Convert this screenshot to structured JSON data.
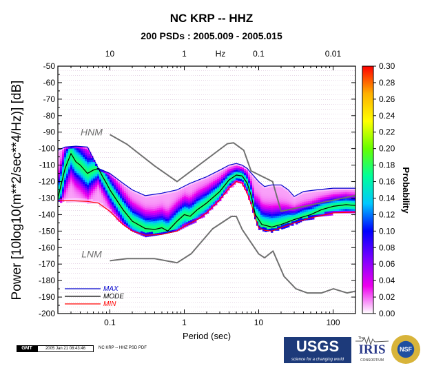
{
  "chart_data": {
    "type": "heatmap",
    "title": "NC KRP -- HHZ",
    "subtitle": "200 PSDs : 2005.009 - 2005.015",
    "xlabel": "Period (sec)",
    "ylabel": "Power [10log10(m**2/sec**4/Hz)] [dB]",
    "top_axis_label": "Hz",
    "x_scale": "log",
    "xlim": [
      0.02,
      200
    ],
    "ylim": [
      -200,
      -50
    ],
    "x_ticks": [
      {
        "value": 0.1,
        "label": "0.1"
      },
      {
        "value": 1,
        "label": "1"
      },
      {
        "value": 10,
        "label": "10"
      },
      {
        "value": 100,
        "label": "100"
      }
    ],
    "top_ticks": [
      {
        "value": 10,
        "label": "10"
      },
      {
        "value": 1,
        "label": "1"
      },
      {
        "value": 0.1,
        "label": "0.1"
      },
      {
        "value": 0.01,
        "label": "0.01"
      }
    ],
    "y_ticks": [
      {
        "value": -50,
        "label": "-50"
      },
      {
        "value": -60,
        "label": "-60"
      },
      {
        "value": -70,
        "label": "-70"
      },
      {
        "value": -80,
        "label": "-80"
      },
      {
        "value": -90,
        "label": "-90"
      },
      {
        "value": -100,
        "label": "-100"
      },
      {
        "value": -110,
        "label": "-110"
      },
      {
        "value": -120,
        "label": "-120"
      },
      {
        "value": -130,
        "label": "-130"
      },
      {
        "value": -140,
        "label": "-140"
      },
      {
        "value": -150,
        "label": "-150"
      },
      {
        "value": -160,
        "label": "-160"
      },
      {
        "value": -170,
        "label": "-170"
      },
      {
        "value": -180,
        "label": "-180"
      },
      {
        "value": -190,
        "label": "-190"
      },
      {
        "value": -200,
        "label": "-200"
      }
    ],
    "colorbar": {
      "label": "Probability",
      "range": [
        0,
        0.3
      ],
      "ticks": [
        {
          "value": 0.3,
          "label": "0.30"
        },
        {
          "value": 0.28,
          "label": "0.28"
        },
        {
          "value": 0.26,
          "label": "0.26"
        },
        {
          "value": 0.24,
          "label": "0.24"
        },
        {
          "value": 0.22,
          "label": "0.22"
        },
        {
          "value": 0.2,
          "label": "0.20"
        },
        {
          "value": 0.18,
          "label": "0.18"
        },
        {
          "value": 0.16,
          "label": "0.16"
        },
        {
          "value": 0.14,
          "label": "0.14"
        },
        {
          "value": 0.12,
          "label": "0.12"
        },
        {
          "value": 0.1,
          "label": "0.10"
        },
        {
          "value": 0.08,
          "label": "0.08"
        },
        {
          "value": 0.06,
          "label": "0.06"
        },
        {
          "value": 0.04,
          "label": "0.04"
        },
        {
          "value": 0.02,
          "label": "0.02"
        },
        {
          "value": 0.0,
          "label": "0.00"
        }
      ],
      "colors": [
        "#ffffff",
        "#ee00ee",
        "#7a00ff",
        "#0000ff",
        "#00c8ff",
        "#00ff9a",
        "#66ff00",
        "#ffff00",
        "#ffb000",
        "#ff0000"
      ]
    },
    "model_labels": [
      {
        "text": "HNM",
        "x": 0.05,
        "y": -92
      },
      {
        "text": "LNM",
        "x": 0.05,
        "y": -166
      }
    ],
    "legend": {
      "position": "bottom-left",
      "entries": [
        {
          "label": "MAX",
          "color": "#0000cc"
        },
        {
          "label": "MODE",
          "color": "#000000"
        },
        {
          "label": "MIN",
          "color": "#ff0000"
        }
      ]
    },
    "series": [
      {
        "name": "HNM",
        "color": "#707070",
        "points": [
          [
            0.1,
            -91.5
          ],
          [
            0.17,
            -97.4
          ],
          [
            0.4,
            -110.5
          ],
          [
            0.8,
            -120
          ],
          [
            3.8,
            -97
          ],
          [
            4.6,
            -96.5
          ],
          [
            6.3,
            -101
          ],
          [
            7.9,
            -113.5
          ],
          [
            15.4,
            -120
          ],
          [
            20,
            -138
          ],
          [
            354.8,
            -126
          ]
        ]
      },
      {
        "name": "LNM",
        "color": "#707070",
        "points": [
          [
            0.1,
            -168
          ],
          [
            0.17,
            -166.7
          ],
          [
            0.4,
            -166.7
          ],
          [
            0.8,
            -169.2
          ],
          [
            1.24,
            -163.7
          ],
          [
            2.4,
            -148.6
          ],
          [
            4.3,
            -141.1
          ],
          [
            5,
            -141.1
          ],
          [
            6,
            -149
          ],
          [
            10,
            -163.8
          ],
          [
            12,
            -166.2
          ],
          [
            15.6,
            -162.1
          ],
          [
            21.9,
            -177.5
          ],
          [
            31.6,
            -185
          ],
          [
            45,
            -187.5
          ],
          [
            70,
            -187.5
          ],
          [
            101,
            -185
          ],
          [
            154,
            -187.5
          ],
          [
            328,
            -184.4
          ]
        ]
      },
      {
        "name": "MAX",
        "color": "#0000cc",
        "points": [
          [
            0.02,
            -101
          ],
          [
            0.025,
            -99
          ],
          [
            0.035,
            -98.5
          ],
          [
            0.05,
            -99
          ],
          [
            0.07,
            -112
          ],
          [
            0.1,
            -115
          ],
          [
            0.15,
            -121
          ],
          [
            0.2,
            -125
          ],
          [
            0.3,
            -128.5
          ],
          [
            0.5,
            -127
          ],
          [
            0.8,
            -125
          ],
          [
            1.2,
            -121
          ],
          [
            2,
            -117
          ],
          [
            3,
            -113
          ],
          [
            4,
            -110
          ],
          [
            5,
            -109
          ],
          [
            6,
            -110
          ],
          [
            7,
            -112
          ],
          [
            8,
            -115
          ],
          [
            10,
            -120
          ],
          [
            12,
            -123
          ],
          [
            15,
            -122
          ],
          [
            20,
            -122
          ],
          [
            25,
            -125
          ],
          [
            30,
            -129
          ],
          [
            40,
            -126
          ],
          [
            60,
            -125
          ],
          [
            100,
            -124
          ],
          [
            200,
            -124
          ]
        ]
      },
      {
        "name": "MODE",
        "color": "#000000",
        "points": [
          [
            0.02,
            -130
          ],
          [
            0.025,
            -112
          ],
          [
            0.03,
            -103
          ],
          [
            0.035,
            -108
          ],
          [
            0.04,
            -110
          ],
          [
            0.05,
            -115
          ],
          [
            0.06,
            -113
          ],
          [
            0.07,
            -112
          ],
          [
            0.08,
            -117
          ],
          [
            0.09,
            -121
          ],
          [
            0.1,
            -125
          ],
          [
            0.15,
            -137
          ],
          [
            0.2,
            -144
          ],
          [
            0.3,
            -148.5
          ],
          [
            0.4,
            -149
          ],
          [
            0.5,
            -148
          ],
          [
            0.6,
            -150
          ],
          [
            0.8,
            -144
          ],
          [
            1,
            -140
          ],
          [
            1.2,
            -141
          ],
          [
            1.5,
            -137
          ],
          [
            2,
            -133
          ],
          [
            3,
            -126
          ],
          [
            4,
            -119
          ],
          [
            5,
            -116
          ],
          [
            6,
            -116.5
          ],
          [
            7,
            -121
          ],
          [
            8,
            -129
          ],
          [
            9,
            -140
          ],
          [
            10,
            -143
          ],
          [
            11,
            -146
          ],
          [
            15,
            -147.5
          ],
          [
            20,
            -146
          ],
          [
            30,
            -143
          ],
          [
            50,
            -140
          ],
          [
            70,
            -137
          ],
          [
            100,
            -135
          ],
          [
            150,
            -134
          ],
          [
            200,
            -134.5
          ]
        ]
      },
      {
        "name": "MIN",
        "color": "#ff0000",
        "points": [
          [
            0.02,
            -131.5
          ],
          [
            0.03,
            -131.5
          ],
          [
            0.05,
            -132
          ],
          [
            0.07,
            -133
          ],
          [
            0.1,
            -138
          ],
          [
            0.15,
            -146
          ],
          [
            0.2,
            -150
          ],
          [
            0.3,
            -152.5
          ],
          [
            0.5,
            -152
          ],
          [
            0.8,
            -150
          ],
          [
            1,
            -147
          ],
          [
            1.5,
            -143
          ],
          [
            2,
            -139
          ],
          [
            3,
            -131
          ],
          [
            4,
            -124
          ],
          [
            5,
            -120
          ],
          [
            6,
            -121
          ],
          [
            7,
            -127
          ],
          [
            8,
            -134
          ],
          [
            9,
            -142
          ],
          [
            10,
            -148
          ],
          [
            12,
            -149.5
          ],
          [
            15,
            -150
          ],
          [
            20,
            -148
          ],
          [
            30,
            -145
          ],
          [
            50,
            -142
          ],
          [
            100,
            -139
          ],
          [
            200,
            -138.5
          ]
        ]
      }
    ]
  },
  "footer": {
    "gmt_label": "GMT",
    "timestamp": "2005 Jan 21 08:43:46",
    "note": "NC KRP -- HHZ PSD PDF"
  },
  "logos": {
    "usgs_name": "USGS",
    "usgs_tagline": "science for a changing world",
    "iris_the": "The",
    "iris_name": "IRIS",
    "iris_consortium": "CONSORTIUM",
    "nsf_name": "NSF"
  }
}
